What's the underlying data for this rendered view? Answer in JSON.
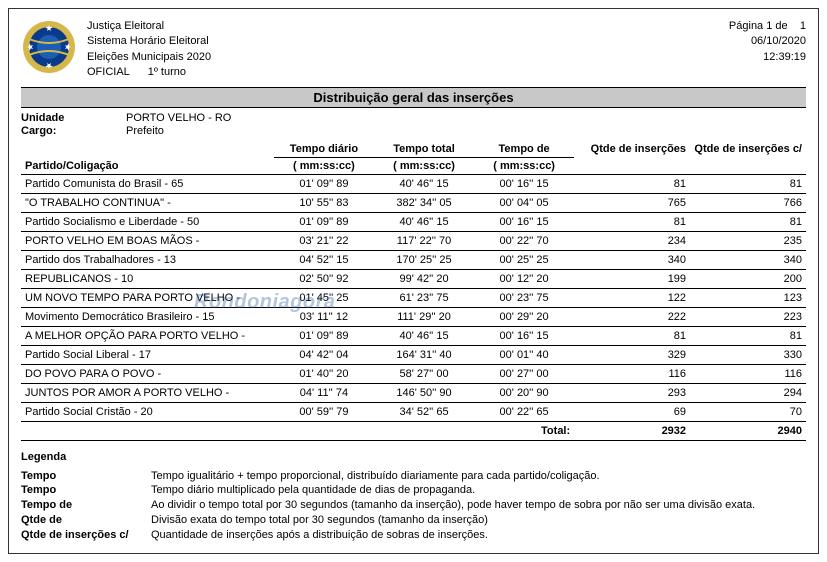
{
  "header": {
    "line1": "Justiça Eleitoral",
    "line2": "Sistema Horário Eleitoral",
    "line3": "Eleições Municipais 2020",
    "line4a": "OFICIAL",
    "line4b": "1º turno",
    "page_label": "Página 1 de",
    "page_total": "1",
    "date": "06/10/2020",
    "time": "12:39:19"
  },
  "title": "Distribuição geral das inserções",
  "meta": {
    "unidade_label": "Unidade",
    "unidade_value": "PORTO VELHO - RO",
    "cargo_label": "Cargo:",
    "cargo_value": "Prefeito"
  },
  "columns": {
    "partido": "Partido/Coligação",
    "tempo_diario": "Tempo diário",
    "tempo_total": "Tempo total",
    "tempo_de": "Tempo de",
    "unit": "( mm:ss:cc)",
    "qtde_ins": "Qtde de inserções",
    "qtde_ins_c": "Qtde de inserções c/"
  },
  "rows": [
    {
      "p": "Partido Comunista do Brasil - 65",
      "td": "01' 09'' 89",
      "tt": "40' 46'' 15",
      "tde": "00' 16'' 15",
      "q": "81",
      "qc": "81"
    },
    {
      "p": "\"O TRABALHO CONTINUA\" -",
      "td": "10' 55'' 83",
      "tt": "382' 34'' 05",
      "tde": "00' 04'' 05",
      "q": "765",
      "qc": "766"
    },
    {
      "p": "Partido Socialismo e Liberdade - 50",
      "td": "01' 09'' 89",
      "tt": "40' 46'' 15",
      "tde": "00' 16'' 15",
      "q": "81",
      "qc": "81"
    },
    {
      "p": "PORTO VELHO EM BOAS MÃOS -",
      "td": "03' 21'' 22",
      "tt": "117' 22'' 70",
      "tde": "00' 22'' 70",
      "q": "234",
      "qc": "235"
    },
    {
      "p": "Partido dos Trabalhadores - 13",
      "td": "04' 52'' 15",
      "tt": "170' 25'' 25",
      "tde": "00' 25'' 25",
      "q": "340",
      "qc": "340"
    },
    {
      "p": "REPUBLICANOS - 10",
      "td": "02' 50'' 92",
      "tt": "99' 42'' 20",
      "tde": "00' 12'' 20",
      "q": "199",
      "qc": "200"
    },
    {
      "p": "UM NOVO TEMPO PARA PORTO VELHO -",
      "td": "01' 45'' 25",
      "tt": "61' 23'' 75",
      "tde": "00' 23'' 75",
      "q": "122",
      "qc": "123"
    },
    {
      "p": "Movimento Democrático Brasileiro - 15",
      "td": "03' 11'' 12",
      "tt": "111' 29'' 20",
      "tde": "00' 29'' 20",
      "q": "222",
      "qc": "223"
    },
    {
      "p": "A MELHOR OPÇÃO PARA PORTO VELHO -",
      "td": "01' 09'' 89",
      "tt": "40' 46'' 15",
      "tde": "00' 16'' 15",
      "q": "81",
      "qc": "81"
    },
    {
      "p": "Partido Social Liberal - 17",
      "td": "04' 42'' 04",
      "tt": "164' 31'' 40",
      "tde": "00' 01'' 40",
      "q": "329",
      "qc": "330"
    },
    {
      "p": "DO POVO PARA O POVO -",
      "td": "01' 40'' 20",
      "tt": "58' 27'' 00",
      "tde": "00' 27'' 00",
      "q": "116",
      "qc": "116"
    },
    {
      "p": "JUNTOS POR AMOR A PORTO VELHO -",
      "td": "04' 11'' 74",
      "tt": "146' 50'' 90",
      "tde": "00' 20'' 90",
      "q": "293",
      "qc": "294"
    },
    {
      "p": "Partido Social Cristão - 20",
      "td": "00' 59'' 79",
      "tt": "34' 52'' 65",
      "tde": "00' 22'' 65",
      "q": "69",
      "qc": "70"
    }
  ],
  "total": {
    "label": "Total:",
    "q": "2932",
    "qc": "2940"
  },
  "legend": {
    "title": "Legenda",
    "rows": [
      {
        "l": "Tempo",
        "d": "Tempo igualitário + tempo proporcional, distribuído diariamente para cada partido/coligação."
      },
      {
        "l": "Tempo",
        "d": "Tempo diário multiplicado pela quantidade de dias de propaganda."
      },
      {
        "l": "Tempo de",
        "d": "Ao dividir o tempo total por 30 segundos (tamanho da inserção), pode haver tempo de sobra por não ser uma divisão exata."
      },
      {
        "l": "Qtde de",
        "d": "Divisão exata do tempo total por 30 segundos (tamanho da inserção)"
      },
      {
        "l": "Qtde de inserções c/",
        "d": "Quantidade de inserções após a distribuição de sobras de inserções."
      }
    ]
  },
  "watermark": "Rondoniagora",
  "emblem_colors": {
    "ring": "#0a3a8a",
    "center": "#1a5fb4",
    "gold": "#d6b84a",
    "star": "#fff"
  }
}
